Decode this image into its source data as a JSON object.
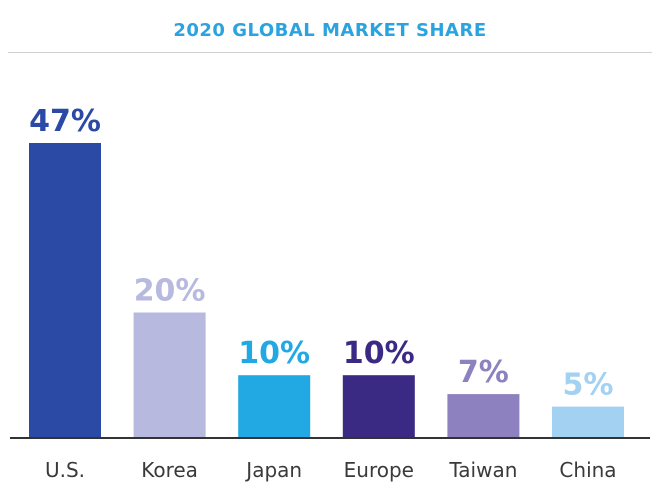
{
  "chart_data": {
    "type": "bar",
    "title": "2020 GLOBAL MARKET SHARE",
    "categories": [
      "U.S.",
      "Korea",
      "Japan",
      "Europe",
      "Taiwan",
      "China"
    ],
    "values": [
      47,
      20,
      10,
      10,
      7,
      5
    ],
    "value_labels": [
      "47%",
      "20%",
      "10%",
      "10%",
      "7%",
      "5%"
    ],
    "colors": [
      "#2b4aa6",
      "#b7b9df",
      "#22a9e3",
      "#3a2a84",
      "#8d82bf",
      "#a3d1f1"
    ],
    "label_colors": [
      "#2b4aa6",
      "#b7b9df",
      "#22a9e3",
      "#3a2a84",
      "#8d82bf",
      "#a3d1f1"
    ],
    "xlabel": "",
    "ylabel": "",
    "ylim": [
      0,
      47
    ],
    "grid": false,
    "title_color": "#2aa3df"
  }
}
